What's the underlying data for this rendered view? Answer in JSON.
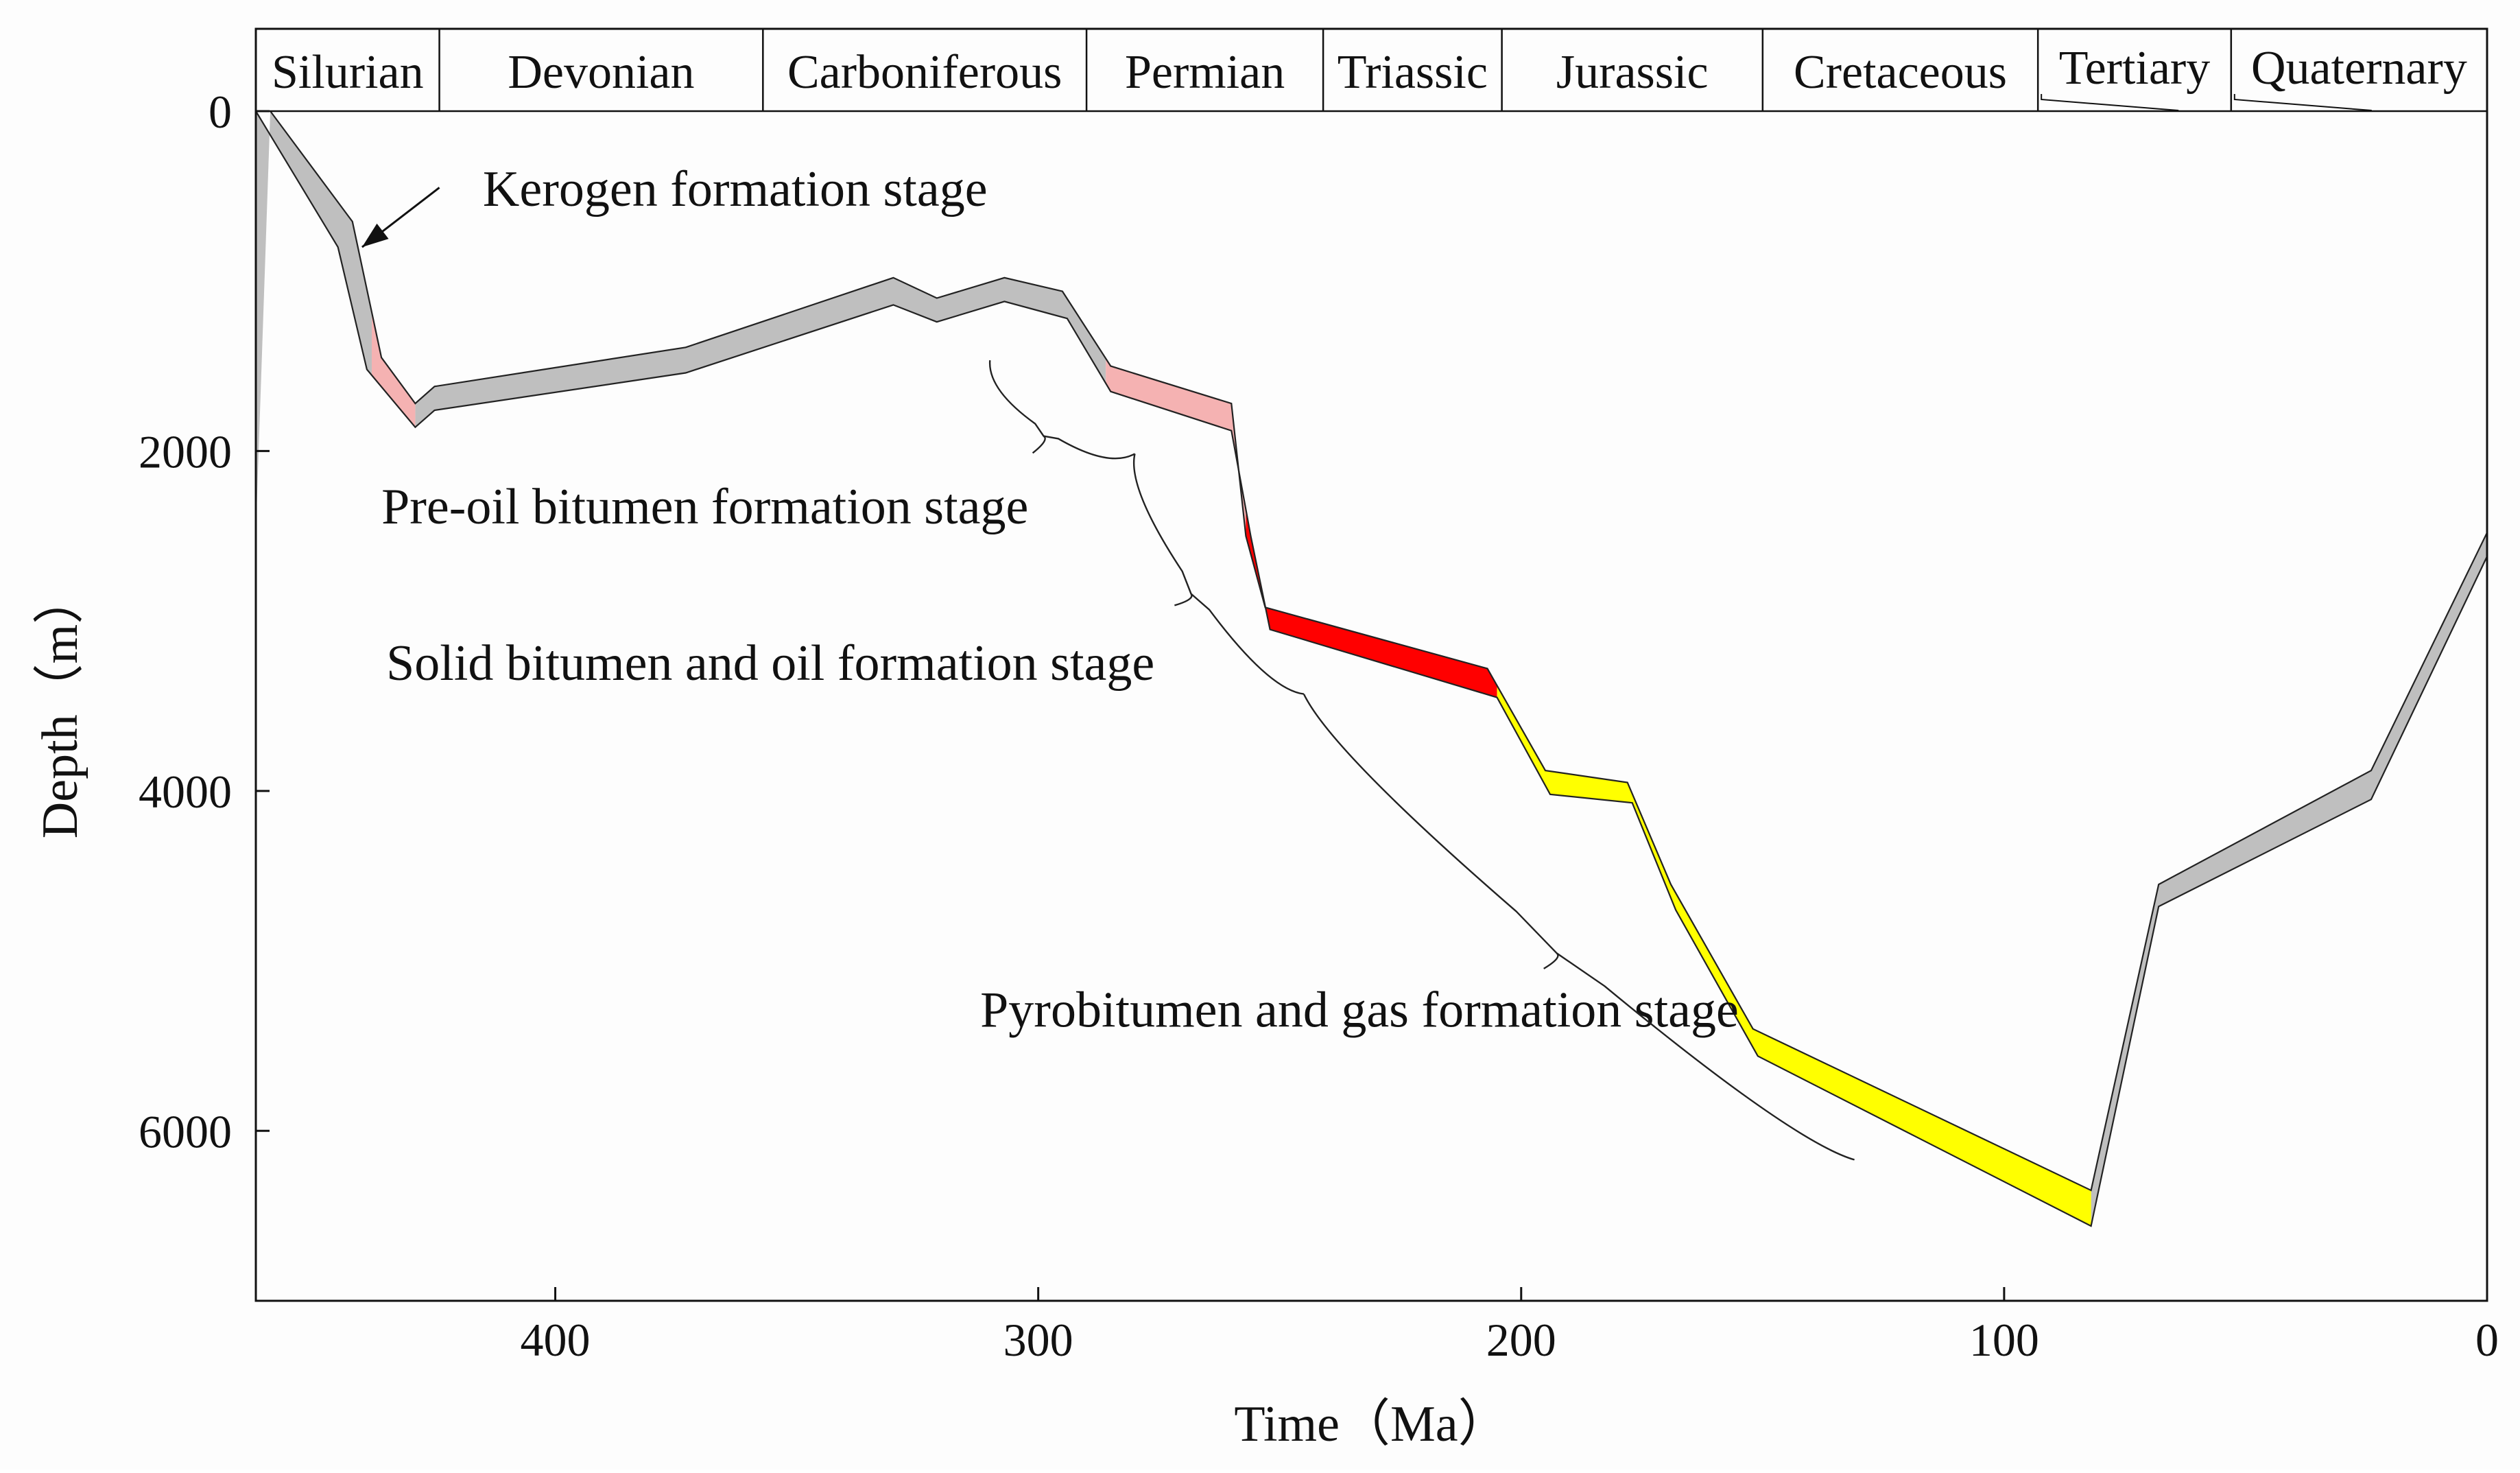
{
  "chart_data": {
    "type": "area",
    "title": "",
    "xlabel": "Time（Ma）",
    "ylabel": "Depth（m）",
    "xlim": [
      462,
      0
    ],
    "ylim": [
      0,
      7000
    ],
    "x_ticks": [
      {
        "value": 400,
        "label": "400"
      },
      {
        "value": 300,
        "label": "300"
      },
      {
        "value": 200,
        "label": "200"
      },
      {
        "value": 100,
        "label": "100"
      },
      {
        "value": 0,
        "label": "0"
      }
    ],
    "y_ticks": [
      {
        "value": 0,
        "label": "0"
      },
      {
        "value": 2000,
        "label": "2000"
      },
      {
        "value": 4000,
        "label": "4000"
      },
      {
        "value": 6000,
        "label": "6000"
      }
    ],
    "periods": [
      {
        "name": "Silurian",
        "start": 462,
        "end": 424
      },
      {
        "name": "Devonian",
        "start": 424,
        "end": 357
      },
      {
        "name": "Carboniferous",
        "start": 357,
        "end": 290
      },
      {
        "name": "Permian",
        "start": 290,
        "end": 241
      },
      {
        "name": "Triassic",
        "start": 241,
        "end": 204
      },
      {
        "name": "Jurassic",
        "start": 204,
        "end": 150
      },
      {
        "name": "Cretaceous",
        "start": 150,
        "end": 93
      },
      {
        "name": "Tertiary",
        "start": 93,
        "end": 53
      },
      {
        "name": "Quaternary",
        "start": 53,
        "end": 0
      }
    ],
    "burial_band": {
      "top": [
        {
          "x": 459,
          "y": 0
        },
        {
          "x": 442,
          "y": 650
        },
        {
          "x": 436,
          "y": 1450
        },
        {
          "x": 429,
          "y": 1720
        },
        {
          "x": 425,
          "y": 1620
        },
        {
          "x": 373,
          "y": 1390
        },
        {
          "x": 330,
          "y": 980
        },
        {
          "x": 321,
          "y": 1100
        },
        {
          "x": 307,
          "y": 980
        },
        {
          "x": 295,
          "y": 1060
        },
        {
          "x": 285,
          "y": 1500
        },
        {
          "x": 260,
          "y": 1720
        },
        {
          "x": 257,
          "y": 2500
        },
        {
          "x": 253,
          "y": 2920
        },
        {
          "x": 207,
          "y": 3280
        },
        {
          "x": 195,
          "y": 3880
        },
        {
          "x": 178,
          "y": 3950
        },
        {
          "x": 169,
          "y": 4550
        },
        {
          "x": 152,
          "y": 5400
        },
        {
          "x": 82,
          "y": 6350
        },
        {
          "x": 68,
          "y": 4550
        },
        {
          "x": 24,
          "y": 3880
        },
        {
          "x": 0,
          "y": 2480
        }
      ],
      "bottom": [
        {
          "x": 462,
          "y": 0
        },
        {
          "x": 445,
          "y": 800
        },
        {
          "x": 439,
          "y": 1520
        },
        {
          "x": 429,
          "y": 1860
        },
        {
          "x": 425,
          "y": 1760
        },
        {
          "x": 373,
          "y": 1540
        },
        {
          "x": 330,
          "y": 1140
        },
        {
          "x": 321,
          "y": 1240
        },
        {
          "x": 307,
          "y": 1120
        },
        {
          "x": 294,
          "y": 1220
        },
        {
          "x": 285,
          "y": 1650
        },
        {
          "x": 260,
          "y": 1880
        },
        {
          "x": 256,
          "y": 2500
        },
        {
          "x": 252,
          "y": 3050
        },
        {
          "x": 205,
          "y": 3450
        },
        {
          "x": 194,
          "y": 4020
        },
        {
          "x": 177,
          "y": 4070
        },
        {
          "x": 168,
          "y": 4700
        },
        {
          "x": 151,
          "y": 5560
        },
        {
          "x": 82,
          "y": 6560
        },
        {
          "x": 68,
          "y": 4680
        },
        {
          "x": 24,
          "y": 4050
        },
        {
          "x": 0,
          "y": 2620
        }
      ]
    },
    "series": [
      {
        "name": "Kerogen formation stage",
        "color": "#bfbfbf",
        "ranges": [
          [
            462,
            438
          ],
          [
            429,
            286
          ],
          [
            82,
            0
          ]
        ]
      },
      {
        "name": "Pre-oil bitumen formation stage",
        "color": "#f5b2b2",
        "ranges": [
          [
            438,
            429
          ],
          [
            286,
            257
          ]
        ]
      },
      {
        "name": "Solid bitumen and oil formation stage",
        "color": "#ff0000",
        "ranges": [
          [
            257,
            205
          ]
        ]
      },
      {
        "name": "Pyrobitumen and gas formation stage",
        "color": "#ffff00",
        "ranges": [
          [
            205,
            82
          ]
        ]
      }
    ],
    "annotations": [
      {
        "text": "Kerogen formation stage",
        "x": 415,
        "y": 460
      },
      {
        "text": "Pre-oil bitumen formation stage",
        "x": 436,
        "y": 2330
      },
      {
        "text": "Solid bitumen and oil formation stage",
        "x": 435,
        "y": 3250
      },
      {
        "text": "Pyrobitumen and gas formation stage",
        "x": 312,
        "y": 5290
      }
    ],
    "arrow": {
      "from": {
        "x": 424,
        "y": 450
      },
      "to": {
        "x": 440,
        "y": 800
      }
    },
    "stage_brackets": [
      {
        "stage": "Pre-oil bitumen formation stage",
        "from": 310,
        "to": 280
      },
      {
        "stage": "Solid bitumen and oil formation stage",
        "from": 280,
        "to": 245
      },
      {
        "stage": "Pyrobitumen and gas formation stage",
        "from": 245,
        "to": 131
      }
    ],
    "legend": "none",
    "grid": false
  }
}
